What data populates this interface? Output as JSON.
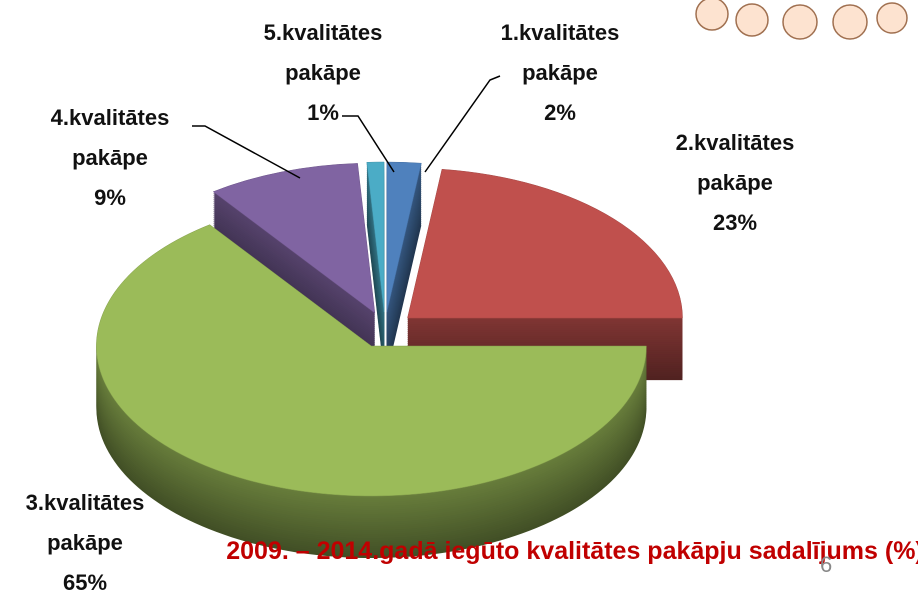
{
  "chart_data": {
    "type": "pie",
    "title": "2009. – 2014.gadā iegūto kvalitātes pakāpju sadalījums (%)",
    "categories": [
      "1.kvalitātes pakāpe",
      "2.kvalitātes pakāpe",
      "3.kvalitātes pakāpe",
      "4.kvalitātes pakāpe",
      "5.kvalitātes pakāpe"
    ],
    "values": [
      2,
      23,
      65,
      9,
      1
    ],
    "value_labels": [
      "2%",
      "23%",
      "65%",
      "9%",
      "1%"
    ],
    "colors": [
      "#4f81bd",
      "#c0504d",
      "#9bbb59",
      "#8064a2",
      "#4bacc6"
    ]
  },
  "slide_number": "6"
}
